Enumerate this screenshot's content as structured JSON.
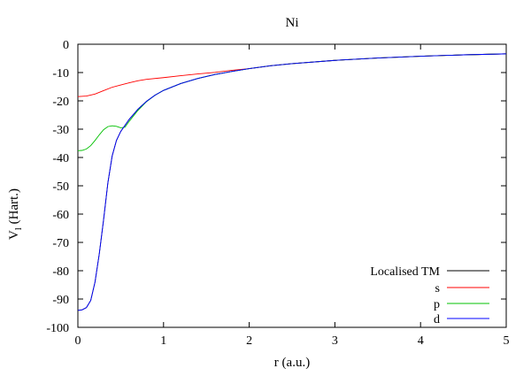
{
  "chart_data": {
    "type": "line",
    "title": "Ni",
    "xlabel": "r (a.u.)",
    "ylabel_main": "V",
    "ylabel_sub": "l",
    "ylabel_tail": " (Hart.)",
    "xlim": [
      0,
      5
    ],
    "ylim": [
      -100,
      0
    ],
    "x_ticks": [
      0,
      1,
      2,
      3,
      4,
      5
    ],
    "y_ticks": [
      0,
      -10,
      -20,
      -30,
      -40,
      -50,
      -60,
      -70,
      -80,
      -90,
      -100
    ],
    "grid": false,
    "legend_position": "bottom-right",
    "series": [
      {
        "name": "Localised TM",
        "color": "#000000",
        "points": [
          [
            0.0,
            -94.0
          ],
          [
            0.05,
            -93.8
          ],
          [
            0.1,
            -93.0
          ],
          [
            0.15,
            -90.5
          ],
          [
            0.2,
            -84.0
          ],
          [
            0.25,
            -74.0
          ],
          [
            0.3,
            -62.0
          ],
          [
            0.35,
            -49.0
          ],
          [
            0.4,
            -39.5
          ],
          [
            0.45,
            -34.0
          ],
          [
            0.5,
            -30.8
          ],
          [
            0.6,
            -26.5
          ],
          [
            0.7,
            -23.0
          ],
          [
            0.8,
            -20.2
          ],
          [
            0.9,
            -18.0
          ],
          [
            1.0,
            -16.3
          ],
          [
            1.2,
            -13.9
          ],
          [
            1.4,
            -12.1
          ],
          [
            1.6,
            -10.7
          ],
          [
            1.8,
            -9.6
          ],
          [
            2.0,
            -8.6
          ],
          [
            2.25,
            -7.6
          ],
          [
            2.5,
            -6.85
          ],
          [
            3.0,
            -5.7
          ],
          [
            3.5,
            -4.85
          ],
          [
            4.0,
            -4.25
          ],
          [
            4.5,
            -3.75
          ],
          [
            5.0,
            -3.4
          ]
        ]
      },
      {
        "name": "s",
        "color": "#ff0000",
        "points": [
          [
            0.0,
            -18.5
          ],
          [
            0.1,
            -18.3
          ],
          [
            0.2,
            -17.6
          ],
          [
            0.3,
            -16.4
          ],
          [
            0.4,
            -15.2
          ],
          [
            0.5,
            -14.4
          ],
          [
            0.6,
            -13.6
          ],
          [
            0.7,
            -12.9
          ],
          [
            0.8,
            -12.4
          ],
          [
            1.0,
            -11.8
          ],
          [
            1.2,
            -11.1
          ],
          [
            1.4,
            -10.5
          ],
          [
            1.6,
            -9.95
          ],
          [
            1.8,
            -9.2
          ],
          [
            2.0,
            -8.6
          ],
          [
            2.25,
            -7.6
          ],
          [
            2.5,
            -6.85
          ],
          [
            3.0,
            -5.7
          ],
          [
            3.5,
            -4.85
          ],
          [
            4.0,
            -4.25
          ],
          [
            4.5,
            -3.75
          ],
          [
            5.0,
            -3.4
          ]
        ]
      },
      {
        "name": "p",
        "color": "#00c000",
        "points": [
          [
            0.0,
            -37.6
          ],
          [
            0.05,
            -37.5
          ],
          [
            0.1,
            -37.0
          ],
          [
            0.15,
            -35.8
          ],
          [
            0.2,
            -34.0
          ],
          [
            0.25,
            -32.0
          ],
          [
            0.3,
            -30.2
          ],
          [
            0.35,
            -29.1
          ],
          [
            0.4,
            -28.8
          ],
          [
            0.45,
            -29.0
          ],
          [
            0.5,
            -29.5
          ],
          [
            0.55,
            -29.3
          ],
          [
            0.6,
            -27.2
          ],
          [
            0.7,
            -23.4
          ],
          [
            0.8,
            -20.3
          ],
          [
            0.9,
            -18.0
          ],
          [
            1.0,
            -16.3
          ],
          [
            1.2,
            -13.9
          ],
          [
            1.4,
            -12.1
          ],
          [
            1.6,
            -10.7
          ],
          [
            1.8,
            -9.6
          ],
          [
            2.0,
            -8.6
          ],
          [
            2.25,
            -7.6
          ],
          [
            2.5,
            -6.85
          ],
          [
            3.0,
            -5.7
          ],
          [
            3.5,
            -4.85
          ],
          [
            4.0,
            -4.25
          ],
          [
            4.5,
            -3.75
          ],
          [
            5.0,
            -3.4
          ]
        ]
      },
      {
        "name": "d",
        "color": "#0000ff",
        "points": [
          [
            0.0,
            -94.0
          ],
          [
            0.05,
            -93.8
          ],
          [
            0.1,
            -93.0
          ],
          [
            0.15,
            -90.5
          ],
          [
            0.2,
            -84.0
          ],
          [
            0.25,
            -74.0
          ],
          [
            0.3,
            -62.0
          ],
          [
            0.35,
            -49.0
          ],
          [
            0.4,
            -39.5
          ],
          [
            0.45,
            -34.0
          ],
          [
            0.5,
            -30.8
          ],
          [
            0.6,
            -26.5
          ],
          [
            0.7,
            -23.0
          ],
          [
            0.8,
            -20.2
          ],
          [
            0.9,
            -18.0
          ],
          [
            1.0,
            -16.3
          ],
          [
            1.2,
            -13.9
          ],
          [
            1.4,
            -12.1
          ],
          [
            1.6,
            -10.7
          ],
          [
            1.8,
            -9.6
          ],
          [
            2.0,
            -8.6
          ],
          [
            2.25,
            -7.6
          ],
          [
            2.5,
            -6.85
          ],
          [
            3.0,
            -5.7
          ],
          [
            3.5,
            -4.85
          ],
          [
            4.0,
            -4.25
          ],
          [
            4.5,
            -3.75
          ],
          [
            5.0,
            -3.4
          ]
        ]
      }
    ]
  }
}
